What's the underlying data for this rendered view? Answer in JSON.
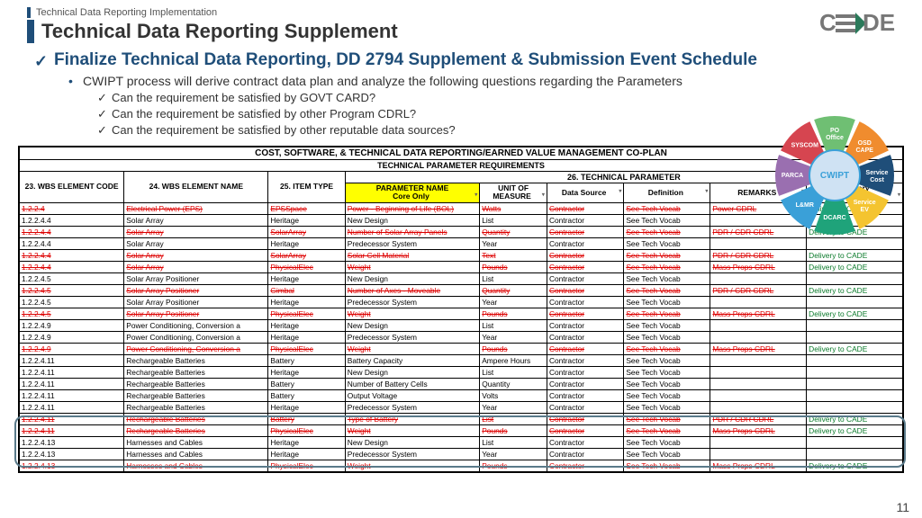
{
  "breadcrumb": "Technical Data Reporting Implementation",
  "title": "Technical Data Reporting Supplement",
  "section_head": "Finalize Technical Data Reporting, DD 2794 Supplement & Submission Event Schedule",
  "bullet": "CWIPT process will derive contract data plan and analyze the following questions regarding the Parameters",
  "subs": [
    "Can the requirement be satisfied by GOVT CARD?",
    "Can the requirement be satisfied by other Program CDRL?",
    "Can the requirement be satisfied by other reputable data sources?"
  ],
  "table_title": "COST, SOFTWARE, & TECHNICAL DATA REPORTING/EARNED VALUE MANAGEMENT CO-PLAN",
  "table_sub": "TECHNICAL PARAMETER REQUIREMENTS",
  "group26": "26. TECHNICAL PARAMETER",
  "cols": {
    "c1": "23. WBS ELEMENT CODE",
    "c2": "24. WBS ELEMENT NAME",
    "c3": "25. ITEM TYPE",
    "c4": "PARAMETER NAME Core Only",
    "c5": "UNIT OF MEASURE",
    "c6": "Data Source",
    "c7": "Definition",
    "c8": "REMARKS",
    "c9": "Delivery REMARKS"
  },
  "rows": [
    {
      "s": 1,
      "d": [
        "1.2.2.4",
        "Electrical Power (EPS)",
        "EPSSpace",
        "Power - Beginning of Life (BOL)",
        "Watts",
        "Contractor",
        "See Tech Vocab",
        "Power CDRL",
        "Delivery to CADE"
      ]
    },
    {
      "s": 0,
      "d": [
        "1.2.2.4.4",
        "Solar Array",
        "Heritage",
        "New Design",
        "List",
        "Contractor",
        "See Tech Vocab",
        "",
        ""
      ]
    },
    {
      "s": 1,
      "d": [
        "1.2.2.4.4",
        "Solar Array",
        "SolarArray",
        "Number of Solar Array Panels",
        "Quantity",
        "Contractor",
        "See Tech Vocab",
        "PDR / CDR CDRL",
        "Delivery to CADE"
      ]
    },
    {
      "s": 0,
      "d": [
        "1.2.2.4.4",
        "Solar Array",
        "Heritage",
        "Predecessor System",
        "Year",
        "Contractor",
        "See Tech Vocab",
        "",
        ""
      ]
    },
    {
      "s": 1,
      "d": [
        "1.2.2.4.4",
        "Solar Array",
        "SolarArray",
        "Solar Cell Material",
        "Text",
        "Contractor",
        "See Tech Vocab",
        "PDR / CDR CDRL",
        "Delivery to CADE"
      ]
    },
    {
      "s": 1,
      "d": [
        "1.2.2.4.4",
        "Solar Array",
        "PhysicalElec",
        "Weight",
        "Pounds",
        "Contractor",
        "See Tech Vocab",
        "Mass Props CDRL",
        "Delivery to CADE"
      ]
    },
    {
      "s": 0,
      "d": [
        "1.2.2.4.5",
        "Solar Array Positioner",
        "Heritage",
        "New Design",
        "List",
        "Contractor",
        "See Tech Vocab",
        "",
        ""
      ]
    },
    {
      "s": 1,
      "d": [
        "1.2.2.4.5",
        "Solar Array Positioner",
        "Gimbal",
        "Number of Axes - Moveable",
        "Quantity",
        "Contractor",
        "See Tech Vocab",
        "PDR / CDR CDRL",
        "Delivery to CADE"
      ]
    },
    {
      "s": 0,
      "d": [
        "1.2.2.4.5",
        "Solar Array Positioner",
        "Heritage",
        "Predecessor System",
        "Year",
        "Contractor",
        "See Tech Vocab",
        "",
        ""
      ]
    },
    {
      "s": 1,
      "d": [
        "1.2.2.4.5",
        "Solar Array Positioner",
        "PhysicalElec",
        "Weight",
        "Pounds",
        "Contractor",
        "See Tech Vocab",
        "Mass Props CDRL",
        "Delivery to CADE"
      ]
    },
    {
      "s": 0,
      "d": [
        "1.2.2.4.9",
        "Power Conditioning, Conversion a",
        "Heritage",
        "New Design",
        "List",
        "Contractor",
        "See Tech Vocab",
        "",
        ""
      ]
    },
    {
      "s": 0,
      "d": [
        "1.2.2.4.9",
        "Power Conditioning, Conversion a",
        "Heritage",
        "Predecessor System",
        "Year",
        "Contractor",
        "See Tech Vocab",
        "",
        ""
      ]
    },
    {
      "s": 1,
      "d": [
        "1.2.2.4.9",
        "Power Conditioning, Conversion a",
        "PhysicalElec",
        "Weight",
        "Pounds",
        "Contractor",
        "See Tech Vocab",
        "Mass Props CDRL",
        "Delivery to CADE"
      ]
    },
    {
      "s": 0,
      "d": [
        "1.2.2.4.11",
        "Rechargeable Batteries",
        "Battery",
        "Battery Capacity",
        "Ampere Hours",
        "Contractor",
        "See Tech Vocab",
        "",
        ""
      ]
    },
    {
      "s": 0,
      "d": [
        "1.2.2.4.11",
        "Rechargeable Batteries",
        "Heritage",
        "New Design",
        "List",
        "Contractor",
        "See Tech Vocab",
        "",
        ""
      ]
    },
    {
      "s": 0,
      "d": [
        "1.2.2.4.11",
        "Rechargeable Batteries",
        "Battery",
        "Number of Battery Cells",
        "Quantity",
        "Contractor",
        "See Tech Vocab",
        "",
        ""
      ]
    },
    {
      "s": 0,
      "d": [
        "1.2.2.4.11",
        "Rechargeable Batteries",
        "Battery",
        "Output Voltage",
        "Volts",
        "Contractor",
        "See Tech Vocab",
        "",
        ""
      ]
    },
    {
      "s": 0,
      "d": [
        "1.2.2.4.11",
        "Rechargeable Batteries",
        "Heritage",
        "Predecessor System",
        "Year",
        "Contractor",
        "See Tech Vocab",
        "",
        ""
      ]
    },
    {
      "s": 1,
      "d": [
        "1.2.2.4.11",
        "Rechargeable Batteries",
        "Battery",
        "Type of Battery",
        "List",
        "Contractor",
        "See Tech Vocab",
        "PDR / CDR CDRL",
        "Delivery to CADE"
      ]
    },
    {
      "s": 1,
      "d": [
        "1.2.2.4.11",
        "Rechargeable Batteries",
        "PhysicalElec",
        "Weight",
        "Pounds",
        "Contractor",
        "See Tech Vocab",
        "Mass Props CDRL",
        "Delivery to CADE"
      ]
    },
    {
      "s": 0,
      "d": [
        "1.2.2.4.13",
        "Harnesses and Cables",
        "Heritage",
        "New Design",
        "List",
        "Contractor",
        "See Tech Vocab",
        "",
        ""
      ]
    },
    {
      "s": 0,
      "d": [
        "1.2.2.4.13",
        "Harnesses and Cables",
        "Heritage",
        "Predecessor System",
        "Year",
        "Contractor",
        "See Tech Vocab",
        "",
        ""
      ]
    },
    {
      "s": 1,
      "d": [
        "1.2.2.4.13",
        "Harnesses and Cables",
        "PhysicalElec",
        "Weight",
        "Pounds",
        "Contractor",
        "See Tech Vocab",
        "Mass Props CDRL",
        "Delivery to CADE"
      ]
    }
  ],
  "wheel": {
    "center": "CWIPT",
    "petals": [
      {
        "label": "PO Office",
        "color": "#6fbf73"
      },
      {
        "label": "OSD CAPE",
        "color": "#f08c2e"
      },
      {
        "label": "Service Cost",
        "color": "#1f4e79"
      },
      {
        "label": "Service EV",
        "color": "#f4c430"
      },
      {
        "label": "DCARC",
        "color": "#1fa37a"
      },
      {
        "label": "L&MR",
        "color": "#3aa0d8"
      },
      {
        "label": "PARCA",
        "color": "#9a6fb0"
      },
      {
        "label": "SYSCOM",
        "color": "#d64550"
      }
    ]
  },
  "pagenum": "11",
  "colwidths": [
    "62",
    "150",
    "80",
    "140",
    "70",
    "80",
    "90",
    "100",
    "100"
  ]
}
